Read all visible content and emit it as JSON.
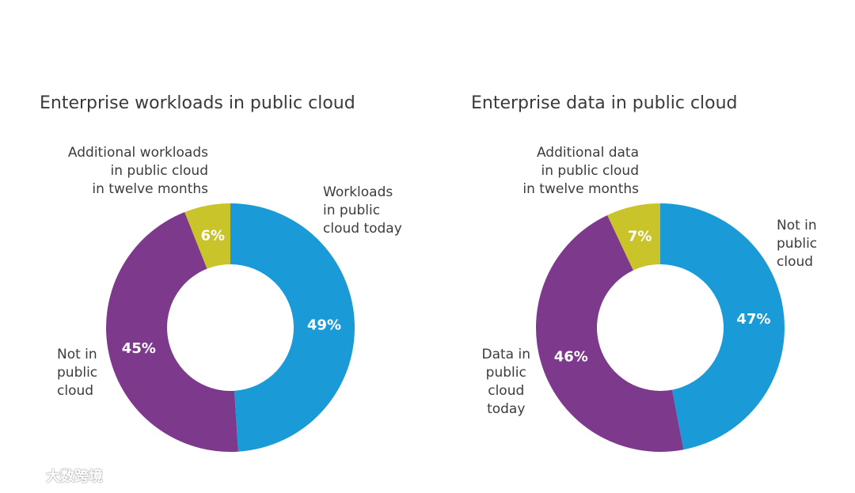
{
  "chart_data": [
    {
      "type": "pie",
      "title": "Enterprise workloads in public cloud",
      "colors": {
        "blue": "#1a9bd7",
        "purple": "#7d3a8c",
        "yellow": "#c8c42a"
      },
      "slices": [
        {
          "label": "Workloads in public cloud today",
          "label_lines": [
            "Workloads",
            "in public",
            "cloud today"
          ],
          "value": 49,
          "value_text": "49%",
          "color": "#1a9bd7"
        },
        {
          "label": "Not in public cloud",
          "label_lines": [
            "Not in",
            "public",
            "cloud"
          ],
          "value": 45,
          "value_text": "45%",
          "color": "#7d3a8c"
        },
        {
          "label": "Additional workloads in public cloud in twelve months",
          "label_lines": [
            "Additional workloads",
            "in public cloud",
            "in twelve months"
          ],
          "value": 6,
          "value_text": "6%",
          "color": "#c8c42a"
        }
      ]
    },
    {
      "type": "pie",
      "title": "Enterprise data in public cloud",
      "colors": {
        "blue": "#1a9bd7",
        "purple": "#7d3a8c",
        "yellow": "#c8c42a"
      },
      "slices": [
        {
          "label": "Not in public cloud",
          "label_lines": [
            "Not in",
            "public",
            "cloud"
          ],
          "value": 47,
          "value_text": "47%",
          "color": "#1a9bd7"
        },
        {
          "label": "Data in public cloud today",
          "label_lines": [
            "Data in",
            "public",
            "cloud",
            "today"
          ],
          "value": 46,
          "value_text": "46%",
          "color": "#7d3a8c"
        },
        {
          "label": "Additional data in public cloud in twelve months",
          "label_lines": [
            "Additional data",
            "in public cloud",
            "in twelve months"
          ],
          "value": 7,
          "value_text": "7%",
          "color": "#c8c42a"
        }
      ]
    }
  ],
  "watermark": {
    "text": "大数跨境",
    "icon": "logo-icon"
  }
}
